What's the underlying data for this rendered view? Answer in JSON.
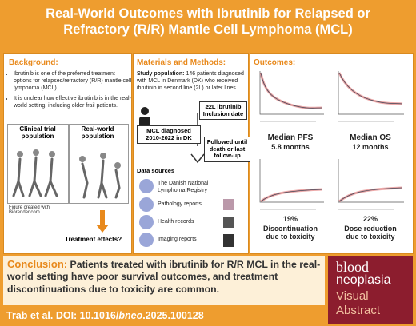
{
  "title": "Real-World Outcomes with Ibrutinib for Relapsed or Refractory (R/R) Mantle Cell Lymphoma (MCL)",
  "background": {
    "heading": "Background:",
    "bullets": [
      "Ibrutinib is one of the preferred treatment options for relapsed/refractory (R/R) mantle cell lymphoma (MCL).",
      "It is unclear how effective ibrutinib is in the real-world setting, including older frail patients."
    ],
    "diagram": {
      "left": "Clinical trial population",
      "right": "Real-world population",
      "credit": "Figure created with Biorender.com",
      "question": "Treatment effects?"
    }
  },
  "methods": {
    "heading": "Materials and Methods:",
    "study_population_label": "Study population:",
    "study_population_text": "146 patients diagnosed with MCL in Denmark (DK) who received ibrutinib in second line (2L) or later lines.",
    "boxes": [
      "≥2L ibrutinib Inclusion date",
      "MCL diagnosed 2010-2022 in DK",
      "Followed until death or last follow-up"
    ],
    "data_sources_heading": "Data sources",
    "sources": [
      "The Danish National Lymphoma Registry",
      "Pathology reports",
      "Health records",
      "Imaging reports"
    ]
  },
  "outcomes": {
    "heading": "Outcomes:",
    "items": [
      {
        "label": "Median PFS",
        "value": "5.8 months"
      },
      {
        "label": "Median OS",
        "value": "12 months"
      },
      {
        "label": "19%",
        "value": "Discontinuation due to toxicity"
      },
      {
        "label": "22%",
        "value": "Dose reduction due to toxicity"
      }
    ]
  },
  "conclusion": {
    "label": "Conclusion:",
    "text": "Patients treated with ibrutinib for R/R MCL in the real-world setting have poor survival outcomes, and treatment discontinuations due to toxicity are common."
  },
  "citation": [
    "Trab et al. DOI: 10.1016/",
    "bneo",
    ".2025.100128"
  ],
  "logo": {
    "brand": "blood",
    "journal": "neoplasia",
    "line1": "Visual",
    "line2": "Abstract"
  }
}
